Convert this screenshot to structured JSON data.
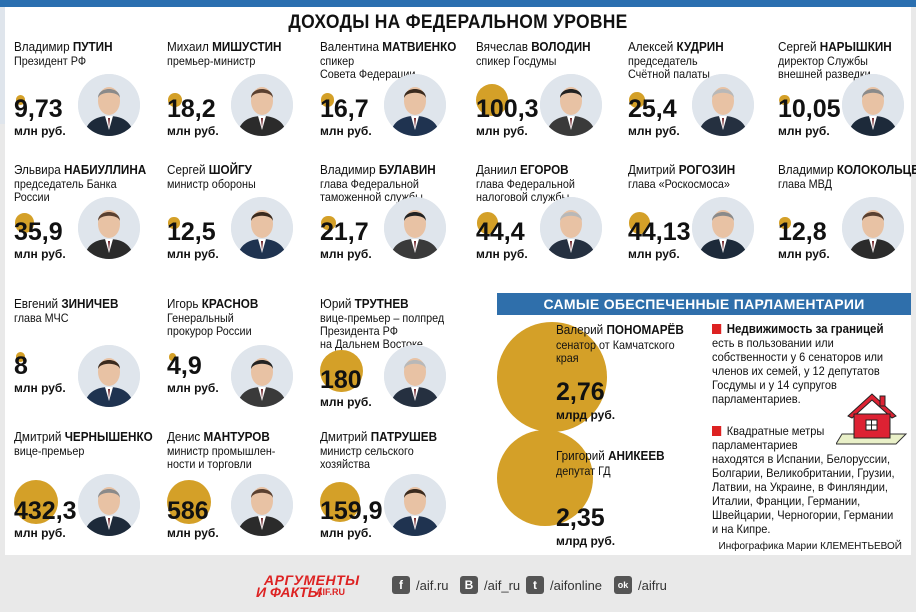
{
  "title": "ДОХОДЫ НА ФЕДЕРАЛЬНОМ УРОВНЕ",
  "unit_mln": "млн руб.",
  "unit_mlrd": "млрд руб.",
  "officials": [
    {
      "first": "Владимир",
      "last": "ПУТИН",
      "role": [
        "Президент РФ"
      ],
      "value": "9,73"
    },
    {
      "first": "Михаил",
      "last": "МИШУСТИН",
      "role": [
        "премьер-министр"
      ],
      "value": "18,2"
    },
    {
      "first": "Валентина",
      "last": "МАТВИЕНКО",
      "role": [
        "спикер",
        "Совета Федерации"
      ],
      "value": "16,7"
    },
    {
      "first": "Вячеслав",
      "last": "ВОЛОДИН",
      "role": [
        "спикер Госдумы"
      ],
      "value": "100,3"
    },
    {
      "first": "Алексей",
      "last": "КУДРИН",
      "role": [
        "председатель",
        "Счётной палаты"
      ],
      "value": "25,4"
    },
    {
      "first": "Сергей",
      "last": "НАРЫШКИН",
      "role": [
        "директор Службы",
        "внешней разведки"
      ],
      "value": "10,05"
    },
    {
      "first": "Эльвира",
      "last": "НАБИУЛЛИНА",
      "role": [
        "председатель Банка",
        "России"
      ],
      "value": "35,9"
    },
    {
      "first": "Сергей",
      "last": "ШОЙГУ",
      "role": [
        "министр обороны"
      ],
      "value": "12,5"
    },
    {
      "first": "Владимир",
      "last": "БУЛАВИН",
      "role": [
        "глава Федеральной",
        "таможенной службы"
      ],
      "value": "21,7"
    },
    {
      "first": "Даниил",
      "last": "ЕГОРОВ",
      "role": [
        "глава Федеральной",
        "налоговой службы"
      ],
      "value": "44,4"
    },
    {
      "first": "Дмитрий",
      "last": "РОГОЗИН",
      "role": [
        "глава «Роскосмоса»"
      ],
      "value": "44,13"
    },
    {
      "first": "Владимир",
      "last": "КОЛОКОЛЬЦЕВ",
      "role": [
        "глава МВД"
      ],
      "value": "12,8"
    },
    {
      "first": "Евгений",
      "last": "ЗИНИЧЕВ",
      "role": [
        "глава МЧС"
      ],
      "value": "8"
    },
    {
      "first": "Игорь",
      "last": "КРАСНОВ",
      "role": [
        "Генеральный",
        "прокурор России"
      ],
      "value": "4,9"
    },
    {
      "first": "Юрий",
      "last": "ТРУТНЕВ",
      "role": [
        "вице-премьер – полпред",
        "Президента РФ",
        "на Дальнем Востоке"
      ],
      "value": "180"
    },
    {
      "first": "Дмитрий",
      "last": "ЧЕРНЫШЕНКО",
      "role": [
        "вице-премьер"
      ],
      "value": "432,3"
    },
    {
      "first": "Денис",
      "last": "МАНТУРОВ",
      "role": [
        "министр промышлен-",
        "ности и торговли"
      ],
      "value": "586"
    },
    {
      "first": "Дмитрий",
      "last": "ПАТРУШЕВ",
      "role": [
        "министр сельского",
        "хозяйства"
      ],
      "value": "159,9"
    }
  ],
  "parliament": {
    "banner": "САМЫЕ ОБЕСПЕЧЕННЫЕ ПАРЛАМЕНТАРИИ",
    "people": [
      {
        "first": "Валерий",
        "last": "ПОНОМАРЁВ",
        "role": [
          "сенатор от Камчатского",
          "края"
        ],
        "value": "2,76"
      },
      {
        "first": "Григорий",
        "last": "АНИКЕЕВ",
        "role": [
          "депутат ГД"
        ],
        "value": "2,35"
      }
    ],
    "realty_head": "Недвижимость за границей",
    "realty_lines": [
      "есть в пользовании или",
      "собственности у 6 сенаторов или",
      "членов их семей, у 12 депутатов",
      "Госдумы и у 14 супругов",
      "парламентариев."
    ],
    "meters_head_1": "Квадратные метры",
    "meters_lines": [
      "парламентариев",
      "находятся в Испании, Белоруссии,",
      "Болгарии, Великобритании, Грузии,",
      "Латвии, на Украине, в Финляндии,",
      "Италии, Франции, Германии,",
      "Швейцарии, Черногории, Германии",
      "и на Кипре."
    ]
  },
  "credit": "Инфографика Марии КЛЕМЕНТЬЕВОЙ",
  "footer": {
    "logo_top": "АРГУМЕНТЫ",
    "logo_mid": "И ФАКТЫ",
    "logo_site": "AIF.RU",
    "socials": [
      {
        "icon": "f",
        "label": "/aif.ru"
      },
      {
        "icon": "В",
        "label": "/aif_ru"
      },
      {
        "icon": "t",
        "label": "/aifonline"
      },
      {
        "icon": "ok",
        "label": "/aifru"
      }
    ]
  },
  "colors": {
    "accent_dot": "#d4a028",
    "banner": "#2f6fab",
    "topbar": "#2a6fb0",
    "bullet": "#dd2222"
  }
}
